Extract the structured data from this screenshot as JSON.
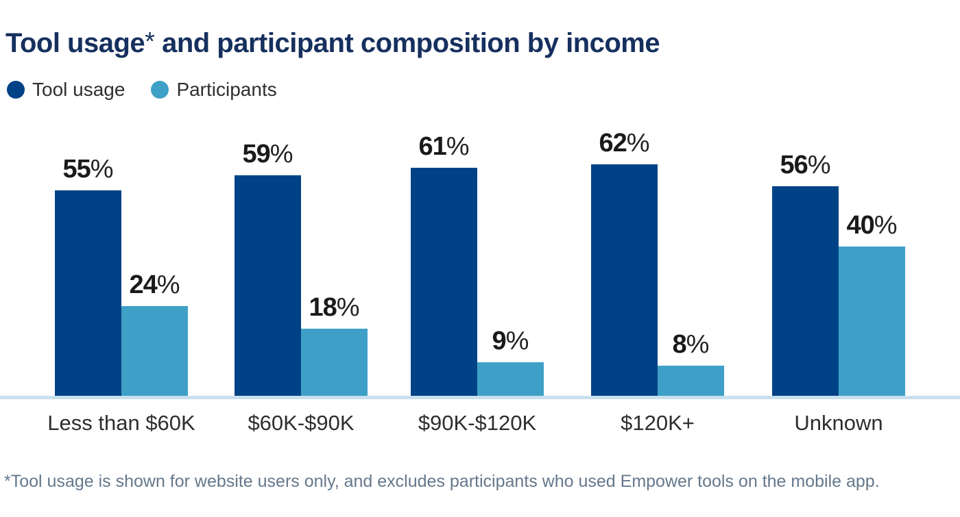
{
  "title": {
    "main": "Tool usage",
    "asterisk": "*",
    "rest": " and participant composition by income"
  },
  "legend": {
    "items": [
      {
        "label": "Tool usage",
        "color": "#004286",
        "icon": "circle-swatch"
      },
      {
        "label": "Participants",
        "color": "#3FA0C7",
        "icon": "circle-swatch"
      }
    ]
  },
  "chart_data": {
    "type": "bar",
    "title": "Tool usage* and participant composition by income",
    "categories": [
      "Less than $60K",
      "$60K-$90K",
      "$90K-$120K",
      "$120K+",
      "Unknown"
    ],
    "series": [
      {
        "name": "Tool usage",
        "color": "#004286",
        "values": [
          55,
          59,
          61,
          62,
          56
        ]
      },
      {
        "name": "Participants",
        "color": "#3FA0C7",
        "values": [
          24,
          18,
          9,
          8,
          40
        ]
      }
    ],
    "value_suffix": "%",
    "ylim": [
      0,
      65
    ],
    "grid": false,
    "axis_line_color": "#C8E0EF",
    "legend_position": "top-left",
    "value_labels": "above-bars"
  },
  "colors": {
    "title": "#16305E",
    "tool_usage_bar": "#004286",
    "participants_bar": "#3FA0C7",
    "value_label": "#1A1A1A",
    "category_label": "#2E2E2E",
    "baseline": "#C8E0EF",
    "footnote": "#64788C",
    "background": "#FFFFFF"
  },
  "footnote": "*Tool usage is shown for website users only, and excludes participants who used Empower tools on the mobile app."
}
